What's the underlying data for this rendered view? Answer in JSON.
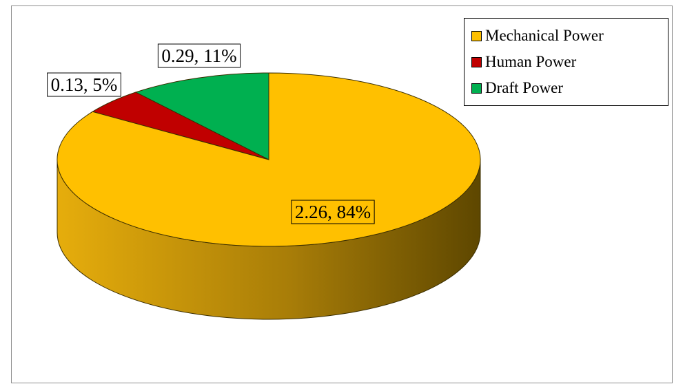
{
  "chart_data": {
    "type": "pie",
    "title": "",
    "categories": [
      "Mechanical Power",
      "Human Power",
      "Draft Power"
    ],
    "values": [
      2.26,
      0.13,
      0.29
    ],
    "percents": [
      84,
      5,
      11
    ],
    "data_labels": [
      "2.26, 84%",
      "0.13, 5%",
      "0.29, 11%"
    ],
    "colors": [
      "#FFC000",
      "#C00000",
      "#00B050"
    ],
    "legend_position": "top-right",
    "style": "3d"
  }
}
